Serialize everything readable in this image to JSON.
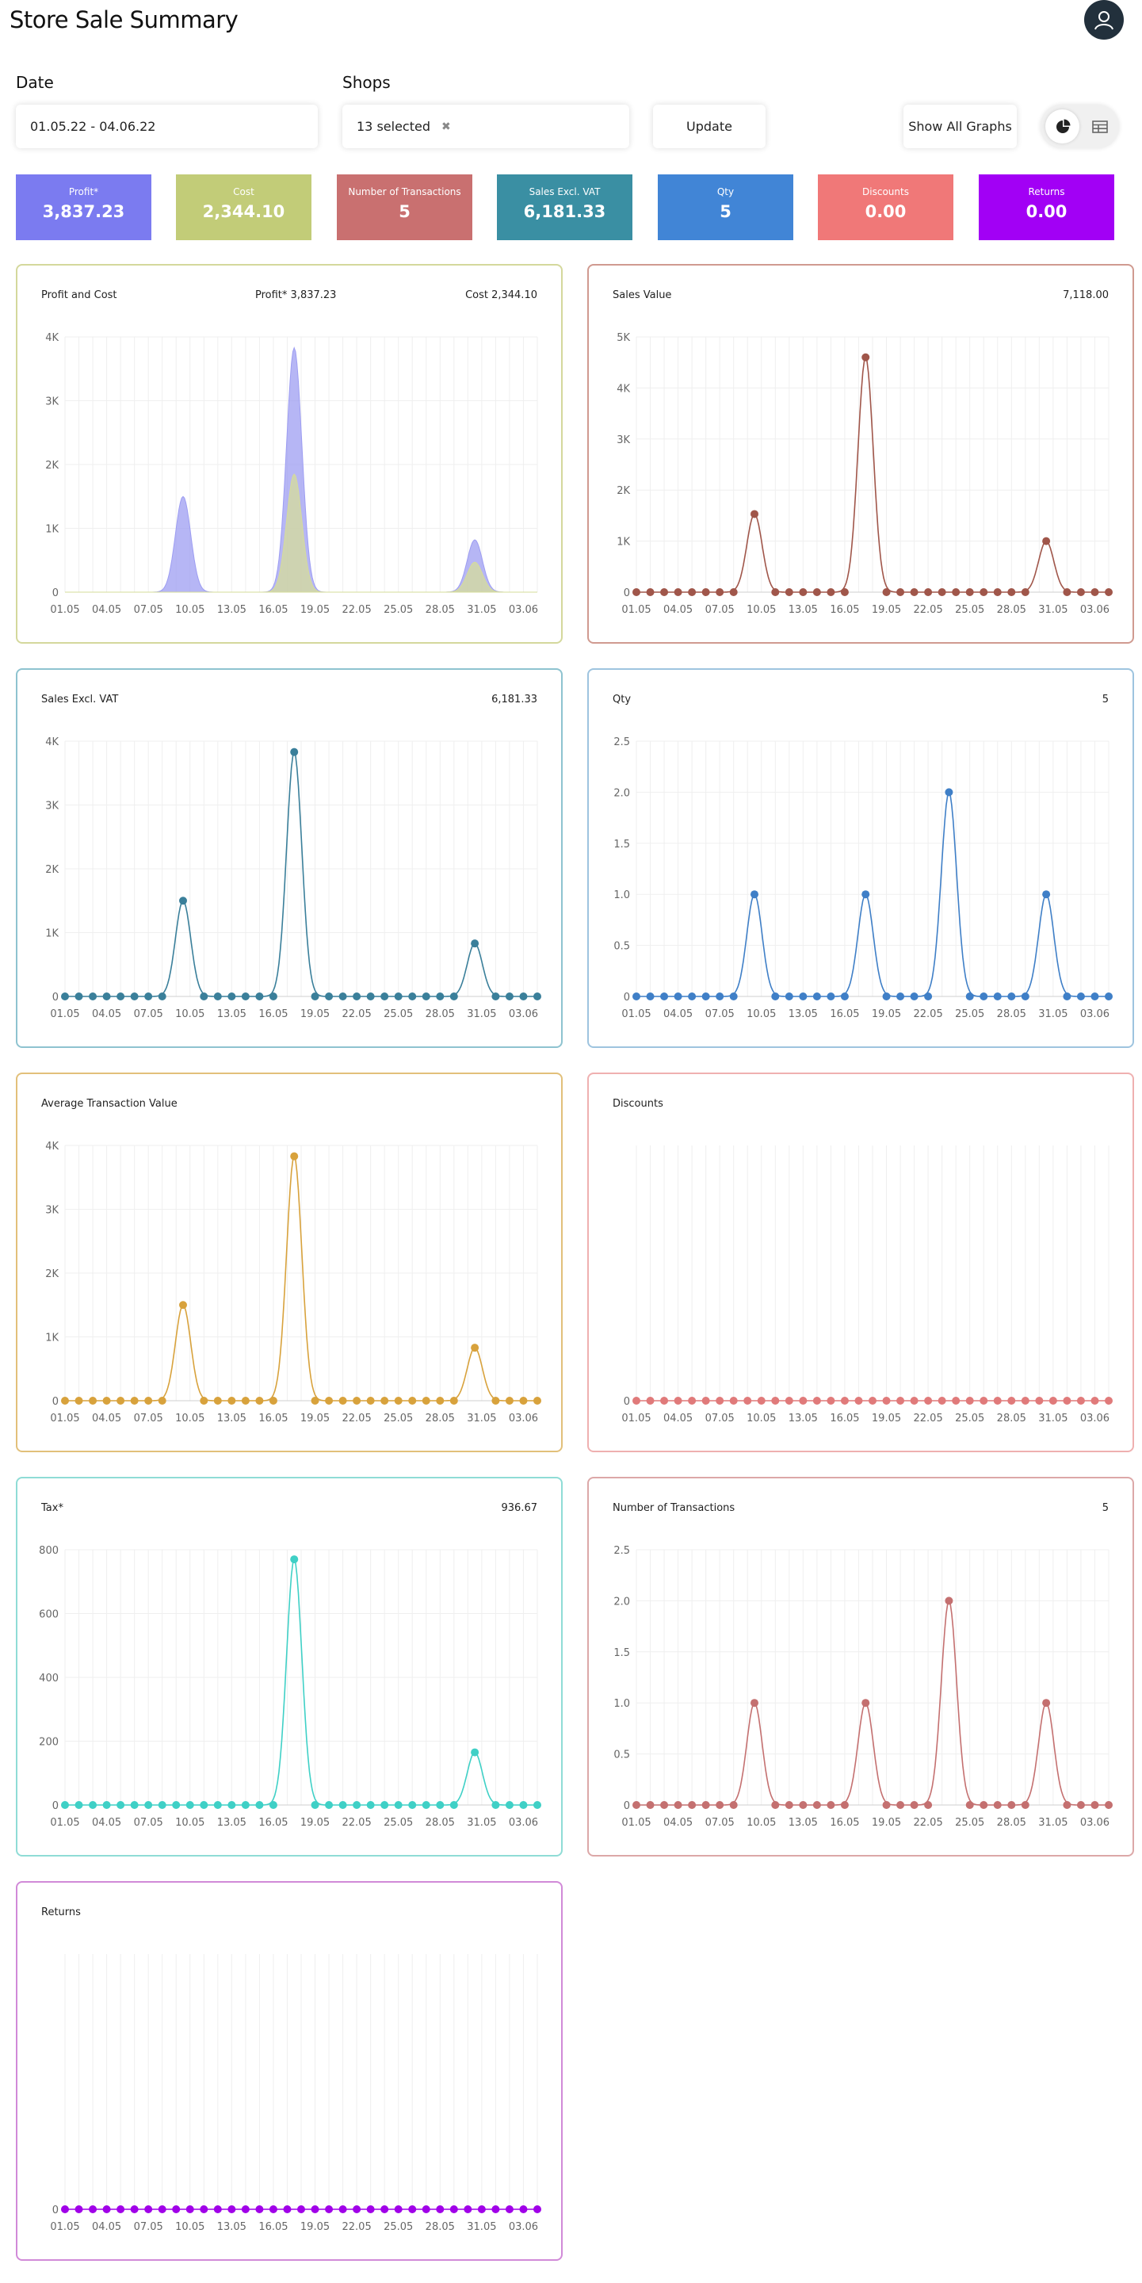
{
  "header": {
    "title": "Store Sale Summary",
    "avatar_icon": "user-icon"
  },
  "filters": {
    "date_label": "Date",
    "date_value": "01.05.22 - 04.06.22",
    "shops_label": "Shops",
    "shops_value": "13 selected",
    "shops_clear": "✖",
    "update_label": "Update",
    "show_all_label": "Show All Graphs",
    "view_toggle": {
      "active": "pie-chart-icon",
      "inactive": "table-icon"
    }
  },
  "kpis": [
    {
      "label": "Profit*",
      "value": "3,837.23",
      "color": "#7b7bf0"
    },
    {
      "label": "Cost",
      "value": "2,344.10",
      "color": "#c2cc78"
    },
    {
      "label": "Number of Transactions",
      "value": "5",
      "color": "#c97070"
    },
    {
      "label": "Sales Excl. VAT",
      "value": "6,181.33",
      "color": "#3a8fa3"
    },
    {
      "label": "Qty",
      "value": "5",
      "color": "#4185d6"
    },
    {
      "label": "Discounts",
      "value": "0.00",
      "color": "#f07878"
    },
    {
      "label": "Returns",
      "value": "0.00",
      "color": "#a200f5"
    }
  ],
  "chart_data": [
    {
      "type": "area",
      "title": "Profit and Cost",
      "summary_mid": "Profit* 3,837.23",
      "summary_right": "Cost 2,344.10",
      "border_color": "#d4d89c",
      "xticks": [
        "01.05",
        "04.05",
        "07.05",
        "10.05",
        "13.05",
        "16.05",
        "19.05",
        "22.05",
        "25.05",
        "28.05",
        "31.05",
        "03.06"
      ],
      "yticks": [
        "0",
        "1K",
        "2K",
        "3K",
        "4K"
      ],
      "ylim": [
        0,
        4000
      ],
      "series": [
        {
          "name": "Profit*",
          "color": "#9d9df2",
          "peaks": [
            {
              "day": 8.5,
              "v": 1500
            },
            {
              "day": 16.5,
              "v": 3830
            },
            {
              "day": 29.5,
              "v": 820
            }
          ]
        },
        {
          "name": "Cost",
          "color": "#d6dc9a",
          "peaks": [
            {
              "day": 16.5,
              "v": 1850
            },
            {
              "day": 29.5,
              "v": 470
            }
          ]
        }
      ]
    },
    {
      "type": "line",
      "title": "Sales Value",
      "summary_right": "7,118.00",
      "border_color": "#d09a90",
      "color": "#a0564a",
      "xticks": [
        "01.05",
        "04.05",
        "07.05",
        "10.05",
        "13.05",
        "16.05",
        "19.05",
        "22.05",
        "25.05",
        "28.05",
        "31.05",
        "03.06"
      ],
      "yticks": [
        "0",
        "1K",
        "2K",
        "3K",
        "4K",
        "5K"
      ],
      "ylim": [
        0,
        5000
      ],
      "peaks": [
        {
          "day": 8.5,
          "v": 1530
        },
        {
          "day": 16.5,
          "v": 4600
        },
        {
          "day": 29.5,
          "v": 1000
        }
      ]
    },
    {
      "type": "line",
      "title": "Sales Excl. VAT",
      "summary_right": "6,181.33",
      "border_color": "#8ec3d0",
      "color": "#3a7f9a",
      "xticks": [
        "01.05",
        "04.05",
        "07.05",
        "10.05",
        "13.05",
        "16.05",
        "19.05",
        "22.05",
        "25.05",
        "28.05",
        "31.05",
        "03.06"
      ],
      "yticks": [
        "0",
        "1K",
        "2K",
        "3K",
        "4K"
      ],
      "ylim": [
        0,
        4000
      ],
      "peaks": [
        {
          "day": 8.5,
          "v": 1500
        },
        {
          "day": 16.5,
          "v": 3830
        },
        {
          "day": 29.5,
          "v": 830
        }
      ]
    },
    {
      "type": "line",
      "title": "Qty",
      "summary_right": "5",
      "border_color": "#9ec4df",
      "color": "#3f7fc7",
      "xticks": [
        "01.05",
        "04.05",
        "07.05",
        "10.05",
        "13.05",
        "16.05",
        "19.05",
        "22.05",
        "25.05",
        "28.05",
        "31.05",
        "03.06"
      ],
      "yticks": [
        "0",
        "0.5",
        "1.0",
        "1.5",
        "2.0",
        "2.5"
      ],
      "ylim": [
        0,
        2.5
      ],
      "peaks": [
        {
          "day": 8.5,
          "v": 1
        },
        {
          "day": 16.5,
          "v": 1
        },
        {
          "day": 22.5,
          "v": 2
        },
        {
          "day": 29.5,
          "v": 1
        }
      ]
    },
    {
      "type": "line",
      "title": "Average Transaction Value",
      "summary_right": "",
      "border_color": "#e2c07a",
      "color": "#d8a23c",
      "xticks": [
        "01.05",
        "04.05",
        "07.05",
        "10.05",
        "13.05",
        "16.05",
        "19.05",
        "22.05",
        "25.05",
        "28.05",
        "31.05",
        "03.06"
      ],
      "yticks": [
        "0",
        "1K",
        "2K",
        "3K",
        "4K"
      ],
      "ylim": [
        0,
        4000
      ],
      "peaks": [
        {
          "day": 8.5,
          "v": 1500
        },
        {
          "day": 16.5,
          "v": 3830
        },
        {
          "day": 29.5,
          "v": 830
        }
      ]
    },
    {
      "type": "line",
      "title": "Discounts",
      "summary_right": "",
      "border_color": "#efb0b0",
      "color": "#e07a7a",
      "xticks": [
        "01.05",
        "04.05",
        "07.05",
        "10.05",
        "13.05",
        "16.05",
        "19.05",
        "22.05",
        "25.05",
        "28.05",
        "31.05",
        "03.06"
      ],
      "yticks": [
        "0"
      ],
      "ylim": [
        0,
        1
      ],
      "peaks": []
    },
    {
      "type": "line",
      "title": "Tax*",
      "summary_right": "936.67",
      "border_color": "#8fdcd6",
      "color": "#3fd0c6",
      "xticks": [
        "01.05",
        "04.05",
        "07.05",
        "10.05",
        "13.05",
        "16.05",
        "19.05",
        "22.05",
        "25.05",
        "28.05",
        "31.05",
        "03.06"
      ],
      "yticks": [
        "0",
        "200",
        "400",
        "600",
        "800"
      ],
      "ylim": [
        0,
        800
      ],
      "peaks": [
        {
          "day": 16.5,
          "v": 770
        },
        {
          "day": 29.5,
          "v": 165
        }
      ]
    },
    {
      "type": "line",
      "title": "Number of Transactions",
      "summary_right": "5",
      "border_color": "#dca8a8",
      "color": "#c47070",
      "xticks": [
        "01.05",
        "04.05",
        "07.05",
        "10.05",
        "13.05",
        "16.05",
        "19.05",
        "22.05",
        "25.05",
        "28.05",
        "31.05",
        "03.06"
      ],
      "yticks": [
        "0",
        "0.5",
        "1.0",
        "1.5",
        "2.0",
        "2.5"
      ],
      "ylim": [
        0,
        2.5
      ],
      "peaks": [
        {
          "day": 8.5,
          "v": 1
        },
        {
          "day": 16.5,
          "v": 1
        },
        {
          "day": 22.5,
          "v": 2
        },
        {
          "day": 29.5,
          "v": 1
        }
      ]
    },
    {
      "type": "line",
      "title": "Returns",
      "summary_right": "",
      "border_color": "#d18ad8",
      "color": "#a000e8",
      "xticks": [
        "01.05",
        "04.05",
        "07.05",
        "10.05",
        "13.05",
        "16.05",
        "19.05",
        "22.05",
        "25.05",
        "28.05",
        "31.05",
        "03.06"
      ],
      "yticks": [
        "0"
      ],
      "ylim": [
        0,
        1
      ],
      "peaks": []
    }
  ]
}
